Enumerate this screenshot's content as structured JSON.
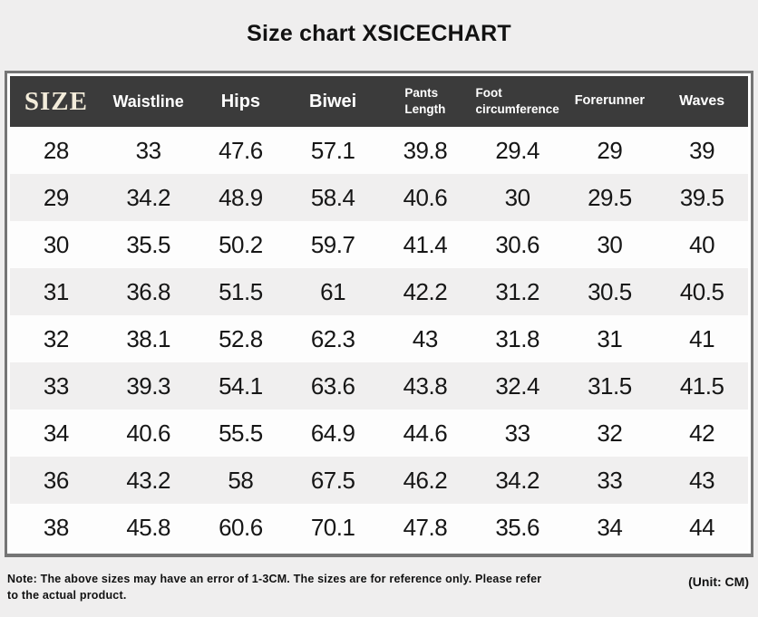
{
  "page": {
    "title": "Size chart XSICECHART",
    "background_color": "#efeeee"
  },
  "chart_data": {
    "type": "table",
    "title": "Size chart XSICECHART",
    "unit": "CM",
    "columns": [
      {
        "label": "SIZE"
      },
      {
        "label": "Waistline"
      },
      {
        "label": "Hips"
      },
      {
        "label": "Biwei"
      },
      {
        "label": "Pants\nLength"
      },
      {
        "label": "Foot\ncircumference"
      },
      {
        "label": "Forerunner"
      },
      {
        "label": "Waves"
      }
    ],
    "rows": [
      [
        "28",
        "33",
        "47.6",
        "57.1",
        "39.8",
        "29.4",
        "29",
        "39"
      ],
      [
        "29",
        "34.2",
        "48.9",
        "58.4",
        "40.6",
        "30",
        "29.5",
        "39.5"
      ],
      [
        "30",
        "35.5",
        "50.2",
        "59.7",
        "41.4",
        "30.6",
        "30",
        "40"
      ],
      [
        "31",
        "36.8",
        "51.5",
        "61",
        "42.2",
        "31.2",
        "30.5",
        "40.5"
      ],
      [
        "32",
        "38.1",
        "52.8",
        "62.3",
        "43",
        "31.8",
        "31",
        "41"
      ],
      [
        "33",
        "39.3",
        "54.1",
        "63.6",
        "43.8",
        "32.4",
        "31.5",
        "41.5"
      ],
      [
        "34",
        "40.6",
        "55.5",
        "64.9",
        "44.6",
        "33",
        "32",
        "42"
      ],
      [
        "36",
        "43.2",
        "58",
        "67.5",
        "46.2",
        "34.2",
        "33",
        "43"
      ],
      [
        "38",
        "45.8",
        "60.6",
        "70.1",
        "47.8",
        "35.6",
        "34",
        "44"
      ]
    ]
  },
  "footer": {
    "note": "Note: The above sizes may have an error of 1-3CM. The sizes are for reference only. Please refer to the actual product.",
    "unit": "(Unit: CM)"
  },
  "colors": {
    "header_background": "#3b3b3b",
    "header_text": "#ffffff",
    "size_label_text": "#f3ecda",
    "row_white": "#fdfdfd",
    "row_gray": "#f0efef",
    "card_border": "#757575",
    "page_background": "#efeeee"
  }
}
